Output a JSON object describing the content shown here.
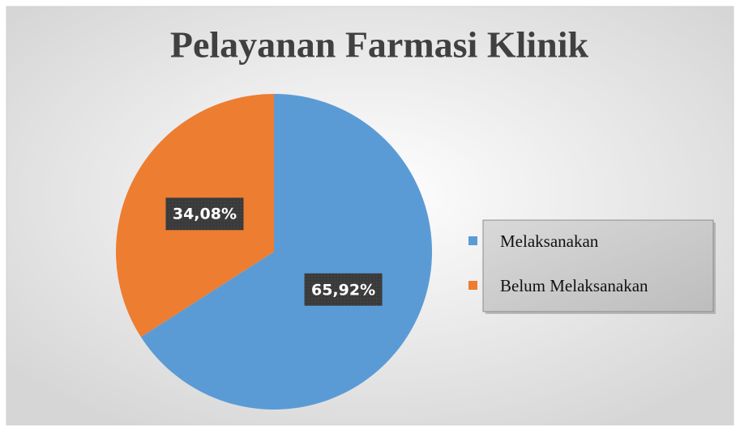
{
  "chart_data": {
    "type": "pie",
    "title": "Pelayanan Farmasi Klinik",
    "categories": [
      "Melaksanakan",
      "Belum Melaksanakan"
    ],
    "values": [
      65.92,
      34.08
    ],
    "value_labels": [
      "65,92%",
      "34,08%"
    ],
    "colors": [
      "#5b9bd5",
      "#ed7d31"
    ],
    "legend": "right"
  }
}
